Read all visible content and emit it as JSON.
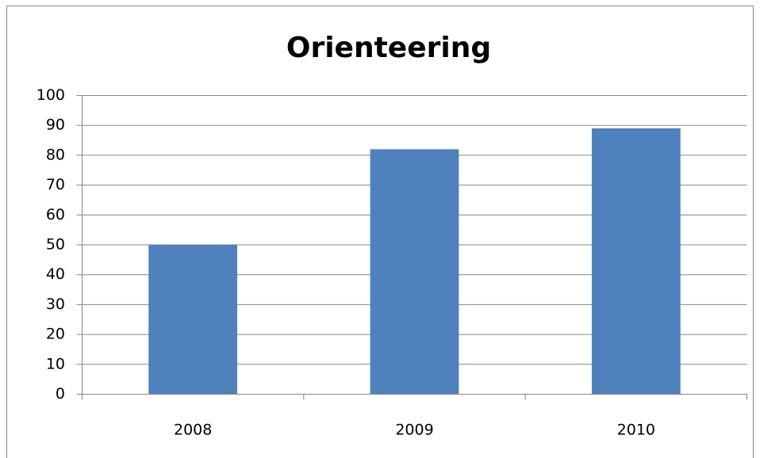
{
  "chart_data": {
    "type": "bar",
    "title": "Orienteering",
    "categories": [
      "2008",
      "2009",
      "2010"
    ],
    "values": [
      50,
      82,
      89
    ],
    "color": "#4f81bd",
    "ylim": [
      0,
      100
    ],
    "yticks": [
      0,
      10,
      20,
      30,
      40,
      50,
      60,
      70,
      80,
      90,
      100
    ],
    "grid": true
  }
}
